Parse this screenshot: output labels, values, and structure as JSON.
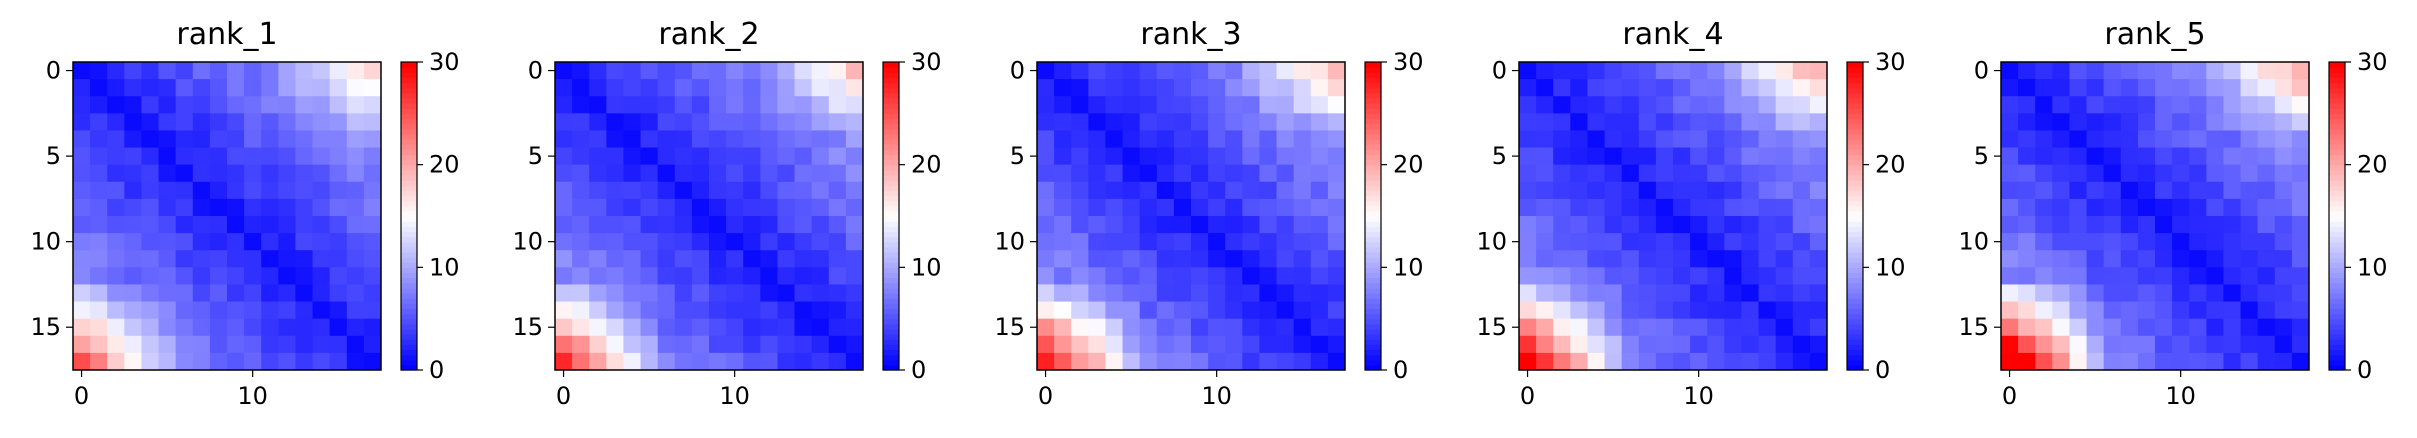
{
  "chart_data": [
    {
      "type": "heatmap",
      "title": "rank_1",
      "xticks": [
        "0",
        "10"
      ],
      "yticks": [
        "0",
        "5",
        "10",
        "15"
      ],
      "colorbar_ticks": [
        "0",
        "10",
        "20",
        "30"
      ],
      "vmin": 0,
      "vmax": 30,
      "size": 18,
      "colormap": "bwr"
    },
    {
      "type": "heatmap",
      "title": "rank_2",
      "xticks": [
        "0",
        "10"
      ],
      "yticks": [
        "0",
        "5",
        "10",
        "15"
      ],
      "colorbar_ticks": [
        "0",
        "10",
        "20",
        "30"
      ],
      "vmin": 0,
      "vmax": 30,
      "size": 18,
      "colormap": "bwr"
    },
    {
      "type": "heatmap",
      "title": "rank_3",
      "xticks": [
        "0",
        "10"
      ],
      "yticks": [
        "0",
        "5",
        "10",
        "15"
      ],
      "colorbar_ticks": [
        "0",
        "10",
        "20",
        "30"
      ],
      "vmin": 0,
      "vmax": 30,
      "size": 18,
      "colormap": "bwr"
    },
    {
      "type": "heatmap",
      "title": "rank_4",
      "xticks": [
        "0",
        "10"
      ],
      "yticks": [
        "0",
        "5",
        "10",
        "15"
      ],
      "colorbar_ticks": [
        "0",
        "10",
        "20",
        "30"
      ],
      "vmin": 0,
      "vmax": 30,
      "size": 18,
      "colormap": "bwr"
    },
    {
      "type": "heatmap",
      "title": "rank_5",
      "xticks": [
        "0",
        "10"
      ],
      "yticks": [
        "0",
        "5",
        "10",
        "15"
      ],
      "colorbar_ticks": [
        "0",
        "10",
        "20",
        "30"
      ],
      "vmin": 0,
      "vmax": 30,
      "size": 18,
      "colormap": "bwr"
    }
  ],
  "colors": {
    "low": "#0000ff",
    "mid": "#ffffff",
    "high": "#ff0000"
  }
}
